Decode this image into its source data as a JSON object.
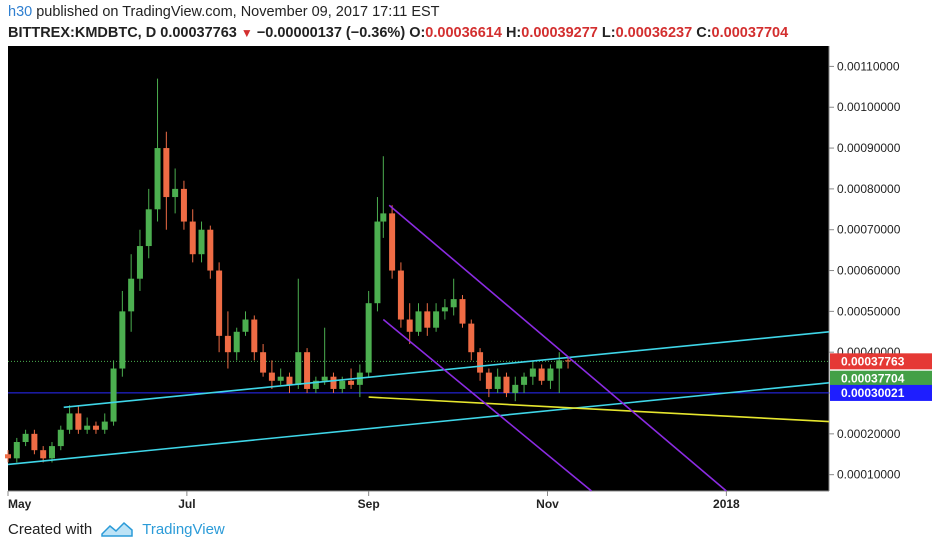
{
  "header": {
    "user": "h30",
    "published": "published on TradingView.com, November 09, 2017 17:11 EST",
    "symbol": "BITTREX:KMDBTC, D",
    "last": "0.00037763",
    "arrow": "▼",
    "change": "−0.00000137 (−0.36%)",
    "o_label": "O:",
    "o_value": "0.00036614",
    "h_label": "H:",
    "h_value": "0.00039277",
    "l_label": "L:",
    "l_value": "0.00036237",
    "c_label": "C:",
    "c_value": "0.00037704"
  },
  "footer": {
    "created_with": "Created with",
    "brand": "TradingView"
  },
  "colors": {
    "background": "#000000",
    "up": "#4caf50",
    "down": "#ef6c45",
    "cyan": "#3fd6e8",
    "purple": "#8b2be2",
    "yellow": "#e6e62e",
    "blue": "#2b2bff",
    "tag_red": "#e53935",
    "tag_green": "#43a047",
    "tag_blue": "#1e1eff"
  },
  "chart_data": {
    "type": "candlestick",
    "timeframe": "D",
    "y_axis": {
      "range": [
        6e-05,
        0.00115
      ],
      "ticks": [
        "0.00010000",
        "0.00020000",
        "0.00030000",
        "0.00040000",
        "0.00050000",
        "0.00060000",
        "0.00070000",
        "0.00080000",
        "0.00090000",
        "0.00100000",
        "0.00110000"
      ]
    },
    "x_axis": {
      "range": [
        "2017-05-01",
        "2018-02-05"
      ],
      "ticks": [
        {
          "label": "May",
          "date": "2017-05-01"
        },
        {
          "label": "Jul",
          "date": "2017-07-01"
        },
        {
          "label": "Sep",
          "date": "2017-09-01"
        },
        {
          "label": "Nov",
          "date": "2017-11-01"
        },
        {
          "label": "2018",
          "date": "2018-01-01"
        }
      ]
    },
    "price_tags": [
      {
        "label": "0.00037763",
        "value": 0.00037763,
        "color": "tag_red"
      },
      {
        "label": "0.00037704",
        "value": 0.000335,
        "color": "tag_green"
      },
      {
        "label": "0.00030021",
        "value": 0.00030021,
        "color": "tag_blue"
      }
    ],
    "hlines": [
      {
        "value": 0.00037763,
        "style": "dotted",
        "color": "#4caf50"
      },
      {
        "value": 0.00030021,
        "style": "solid",
        "color": "blue"
      }
    ],
    "trendlines": [
      {
        "color": "cyan",
        "from": [
          "2017-05-01",
          0.000125
        ],
        "to": [
          "2018-02-05",
          0.000325
        ]
      },
      {
        "color": "cyan",
        "from": [
          "2017-05-20",
          0.000265
        ],
        "to": [
          "2018-02-05",
          0.00045
        ]
      },
      {
        "color": "yellow",
        "from": [
          "2017-09-01",
          0.00029
        ],
        "to": [
          "2018-02-05",
          0.00023
        ]
      },
      {
        "color": "purple",
        "from": [
          "2017-09-08",
          0.00076
        ],
        "to": [
          "2018-01-01",
          6e-05
        ]
      },
      {
        "color": "purple",
        "from": [
          "2017-09-06",
          0.00048
        ],
        "to": [
          "2017-11-16",
          6e-05
        ]
      }
    ],
    "candles": [
      [
        "2017-05-01",
        0.00015,
        0.00016,
        0.00013,
        0.00014
      ],
      [
        "2017-05-04",
        0.00014,
        0.00019,
        0.00013,
        0.00018
      ],
      [
        "2017-05-07",
        0.00018,
        0.00021,
        0.00017,
        0.0002
      ],
      [
        "2017-05-10",
        0.0002,
        0.00021,
        0.00015,
        0.00016
      ],
      [
        "2017-05-13",
        0.00016,
        0.00017,
        0.00013,
        0.00014
      ],
      [
        "2017-05-16",
        0.00014,
        0.00018,
        0.00013,
        0.00017
      ],
      [
        "2017-05-19",
        0.00017,
        0.00022,
        0.00016,
        0.00021
      ],
      [
        "2017-05-22",
        0.00021,
        0.00027,
        0.0002,
        0.00025
      ],
      [
        "2017-05-25",
        0.00025,
        0.00027,
        0.0002,
        0.00021
      ],
      [
        "2017-05-28",
        0.00021,
        0.00024,
        0.0002,
        0.00022
      ],
      [
        "2017-05-31",
        0.00022,
        0.00023,
        0.0002,
        0.00021
      ],
      [
        "2017-06-03",
        0.00021,
        0.00025,
        0.0002,
        0.00023
      ],
      [
        "2017-06-06",
        0.00023,
        0.00038,
        0.00022,
        0.00036
      ],
      [
        "2017-06-09",
        0.00036,
        0.00055,
        0.00034,
        0.0005
      ],
      [
        "2017-06-12",
        0.0005,
        0.00064,
        0.00045,
        0.00058
      ],
      [
        "2017-06-15",
        0.00058,
        0.0007,
        0.00055,
        0.00066
      ],
      [
        "2017-06-18",
        0.00066,
        0.0008,
        0.00063,
        0.00075
      ],
      [
        "2017-06-21",
        0.00075,
        0.00107,
        0.00072,
        0.0009
      ],
      [
        "2017-06-24",
        0.0009,
        0.00094,
        0.0007,
        0.00078
      ],
      [
        "2017-06-27",
        0.00078,
        0.00085,
        0.00074,
        0.0008
      ],
      [
        "2017-06-30",
        0.0008,
        0.00082,
        0.0007,
        0.00072
      ],
      [
        "2017-07-03",
        0.00072,
        0.00075,
        0.00062,
        0.00064
      ],
      [
        "2017-07-06",
        0.00064,
        0.00072,
        0.00062,
        0.0007
      ],
      [
        "2017-07-09",
        0.0007,
        0.00071,
        0.00058,
        0.0006
      ],
      [
        "2017-07-12",
        0.0006,
        0.00062,
        0.0004,
        0.00044
      ],
      [
        "2017-07-15",
        0.00044,
        0.0005,
        0.00036,
        0.0004
      ],
      [
        "2017-07-18",
        0.0004,
        0.00046,
        0.00038,
        0.00045
      ],
      [
        "2017-07-21",
        0.00045,
        0.0005,
        0.00044,
        0.00048
      ],
      [
        "2017-07-24",
        0.00048,
        0.00049,
        0.00038,
        0.0004
      ],
      [
        "2017-07-27",
        0.0004,
        0.00042,
        0.00034,
        0.00035
      ],
      [
        "2017-07-30",
        0.00035,
        0.00038,
        0.00031,
        0.00033
      ],
      [
        "2017-08-02",
        0.00033,
        0.00036,
        0.00032,
        0.00034
      ],
      [
        "2017-08-05",
        0.00034,
        0.00035,
        0.0003,
        0.00032
      ],
      [
        "2017-08-08",
        0.00032,
        0.00058,
        0.00031,
        0.0004
      ],
      [
        "2017-08-11",
        0.0004,
        0.00041,
        0.0003,
        0.00031
      ],
      [
        "2017-08-14",
        0.00031,
        0.00034,
        0.0003,
        0.00033
      ],
      [
        "2017-08-17",
        0.00033,
        0.00046,
        0.00032,
        0.00034
      ],
      [
        "2017-08-20",
        0.00034,
        0.00035,
        0.0003,
        0.00031
      ],
      [
        "2017-08-23",
        0.00031,
        0.00034,
        0.0003,
        0.00033
      ],
      [
        "2017-08-26",
        0.00033,
        0.00036,
        0.00031,
        0.00032
      ],
      [
        "2017-08-29",
        0.00032,
        0.00037,
        0.00029,
        0.00035
      ],
      [
        "2017-09-01",
        0.00035,
        0.00055,
        0.00034,
        0.00052
      ],
      [
        "2017-09-04",
        0.00052,
        0.00078,
        0.0005,
        0.00072
      ],
      [
        "2017-09-06",
        0.00072,
        0.00088,
        0.00068,
        0.00074
      ],
      [
        "2017-09-09",
        0.00074,
        0.00076,
        0.00058,
        0.0006
      ],
      [
        "2017-09-12",
        0.0006,
        0.00062,
        0.00046,
        0.00048
      ],
      [
        "2017-09-15",
        0.00048,
        0.00052,
        0.00042,
        0.00045
      ],
      [
        "2017-09-18",
        0.00045,
        0.00052,
        0.00044,
        0.0005
      ],
      [
        "2017-09-21",
        0.0005,
        0.00052,
        0.00044,
        0.00046
      ],
      [
        "2017-09-24",
        0.00046,
        0.00052,
        0.00045,
        0.0005
      ],
      [
        "2017-09-27",
        0.0005,
        0.00053,
        0.00048,
        0.00051
      ],
      [
        "2017-09-30",
        0.00051,
        0.00058,
        0.00049,
        0.00053
      ],
      [
        "2017-10-03",
        0.00053,
        0.00054,
        0.00046,
        0.00047
      ],
      [
        "2017-10-06",
        0.00047,
        0.00048,
        0.00038,
        0.0004
      ],
      [
        "2017-10-09",
        0.0004,
        0.00041,
        0.00033,
        0.00035
      ],
      [
        "2017-10-12",
        0.00035,
        0.00036,
        0.00029,
        0.00031
      ],
      [
        "2017-10-15",
        0.00031,
        0.00036,
        0.0003,
        0.00034
      ],
      [
        "2017-10-18",
        0.00034,
        0.00035,
        0.00029,
        0.0003
      ],
      [
        "2017-10-21",
        0.0003,
        0.00034,
        0.00028,
        0.00032
      ],
      [
        "2017-10-24",
        0.00032,
        0.00035,
        0.0003,
        0.00034
      ],
      [
        "2017-10-27",
        0.00034,
        0.00038,
        0.00032,
        0.00036
      ],
      [
        "2017-10-30",
        0.00036,
        0.00037,
        0.00032,
        0.00033
      ],
      [
        "2017-11-02",
        0.00033,
        0.00037,
        0.00031,
        0.00036
      ],
      [
        "2017-11-05",
        0.00036,
        0.0004,
        0.0003,
        0.00038
      ],
      [
        "2017-11-08",
        0.00038,
        0.00039,
        0.00036,
        0.00037763
      ]
    ]
  }
}
